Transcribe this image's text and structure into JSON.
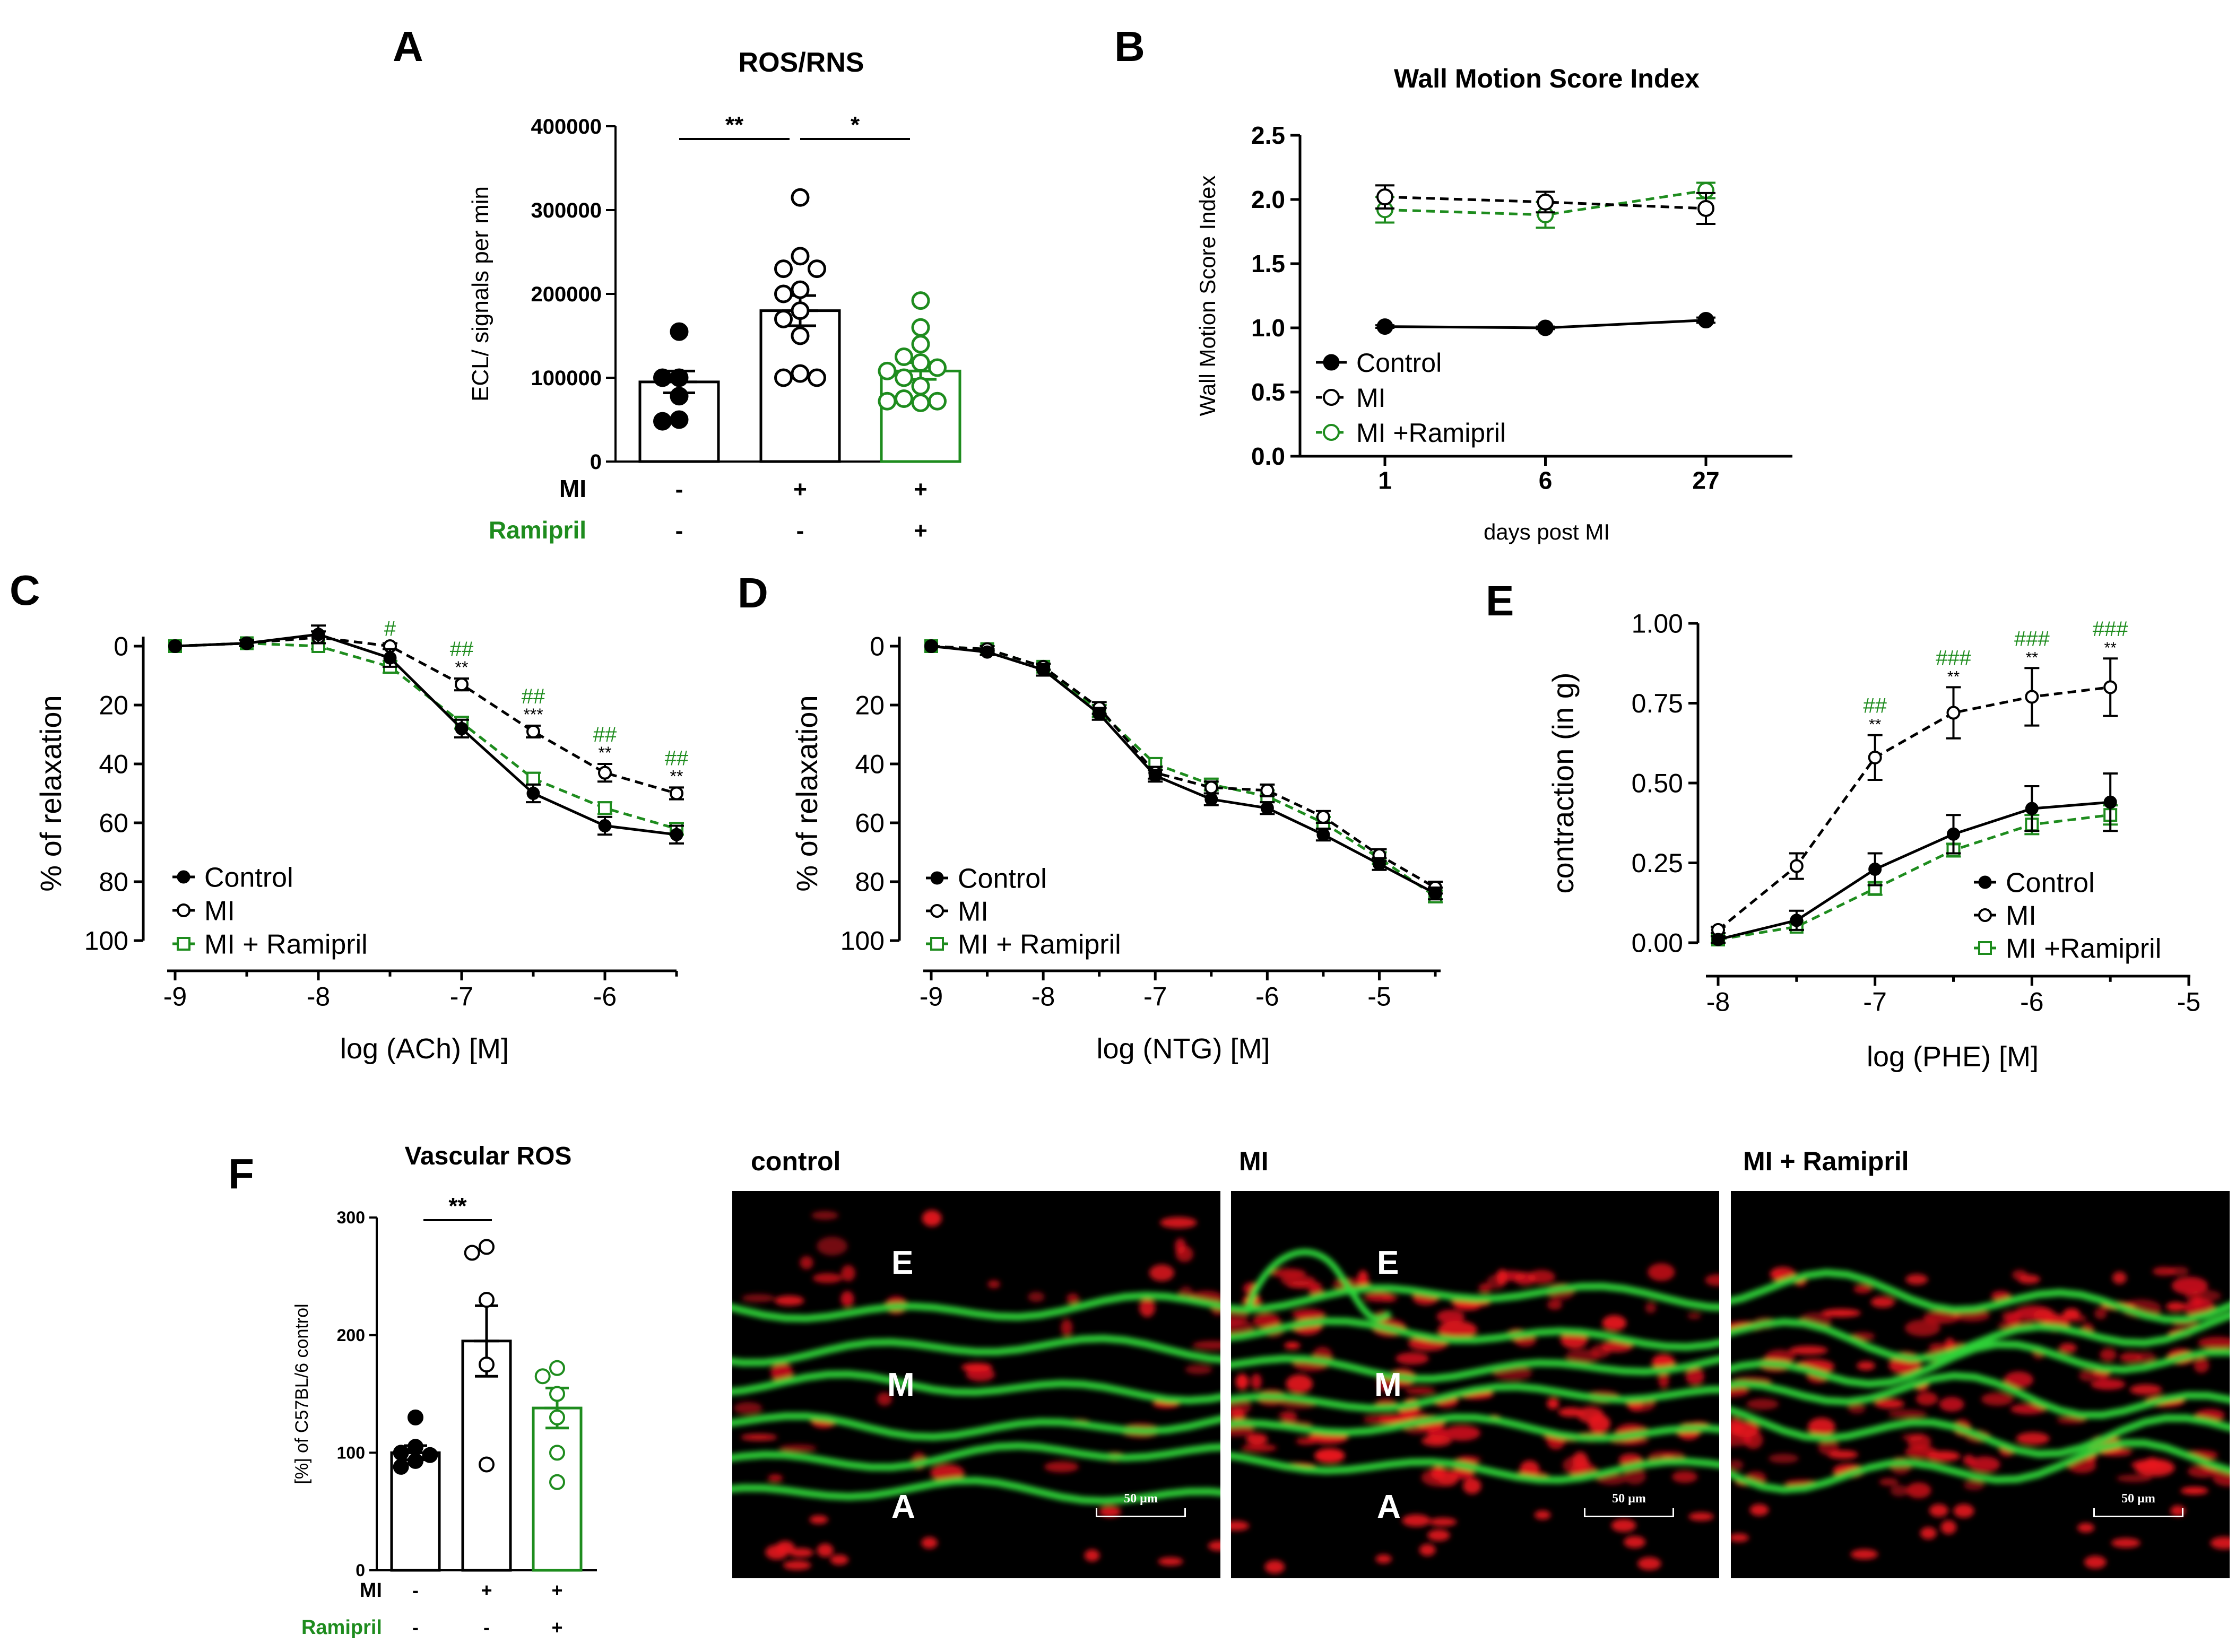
{
  "panel_letters": {
    "A": "A",
    "B": "B",
    "C": "C",
    "D": "D",
    "E": "E",
    "F": "F"
  },
  "colors": {
    "control": "#000000",
    "mi": "#000000",
    "ramipril": "#1e8c1e",
    "sig_green": "#1e8c1e"
  },
  "chart_data": [
    {
      "id": "A",
      "type": "bar",
      "title": "ROS/RNS",
      "ylabel": "ECL/ signals per min",
      "ylim": [
        0,
        400000
      ],
      "yticks": [
        "0",
        "100000",
        "200000",
        "300000",
        "400000"
      ],
      "ytick_values": [
        0,
        100000,
        200000,
        300000,
        400000
      ],
      "row_labels": {
        "mi": "MI",
        "ramipril": "Ramipril"
      },
      "groups": [
        {
          "name": "Control",
          "mean": 95000,
          "sem": 13000,
          "color": "#000000",
          "filled": true,
          "points": [
            155000,
            100000,
            100000,
            78000,
            50000,
            48000
          ],
          "mi": "-",
          "ramipril": "-"
        },
        {
          "name": "MI",
          "mean": 180000,
          "sem": 18000,
          "color": "#000000",
          "filled": false,
          "points": [
            315000,
            245000,
            230000,
            230000,
            205000,
            200000,
            180000,
            170000,
            150000,
            105000,
            100000,
            100000
          ],
          "mi": "+",
          "ramipril": "-"
        },
        {
          "name": "MI + Ramipril",
          "mean": 108000,
          "sem": 10000,
          "color": "#1e8c1e",
          "filled": false,
          "points": [
            192000,
            160000,
            140000,
            125000,
            118000,
            112000,
            108000,
            100000,
            90000,
            75000,
            72000,
            72000,
            70000
          ],
          "mi": "+",
          "ramipril": "+"
        }
      ],
      "significance": [
        {
          "from": 0,
          "to": 1,
          "label": "**"
        },
        {
          "from": 1,
          "to": 2,
          "label": "*"
        }
      ]
    },
    {
      "id": "B",
      "type": "line",
      "title": "Wall Motion Score Index",
      "xlabel": "days post MI",
      "ylabel": "Wall Motion Score Index",
      "categories": [
        "1",
        "6",
        "27"
      ],
      "ylim": [
        0,
        2.5
      ],
      "yticks": [
        "0.0",
        "0.5",
        "1.0",
        "1.5",
        "2.0",
        "2.5"
      ],
      "ytick_values": [
        0,
        0.5,
        1.0,
        1.5,
        2.0,
        2.5
      ],
      "legend": [
        "Control",
        "MI",
        "MI +Ramipril"
      ],
      "series": [
        {
          "name": "Control",
          "values": [
            1.01,
            1.0,
            1.06
          ],
          "err": [
            0.01,
            0.01,
            0.02
          ],
          "color": "#000000",
          "dashed": false,
          "marker": "filled-circle"
        },
        {
          "name": "MI",
          "values": [
            2.02,
            1.98,
            1.93
          ],
          "err": [
            0.09,
            0.08,
            0.12
          ],
          "color": "#000000",
          "dashed": true,
          "marker": "open-circle"
        },
        {
          "name": "MI +Ramipril",
          "values": [
            1.92,
            1.88,
            2.07
          ],
          "err": [
            0.1,
            0.1,
            0.06
          ],
          "color": "#1e8c1e",
          "dashed": true,
          "marker": "open-circle"
        }
      ]
    },
    {
      "id": "C",
      "type": "line",
      "xlabel": "log (ACh) [M]",
      "ylabel": "% of relaxation",
      "x": [
        -9,
        -8.5,
        -8,
        -7.5,
        -7,
        -6.5,
        -6,
        -5.5
      ],
      "xlim": [
        -9,
        -5.5
      ],
      "xticks": [
        "-9",
        "-8",
        "-7",
        "-6"
      ],
      "xtick_values": [
        -9,
        -8,
        -7,
        -6
      ],
      "ylim": [
        0,
        100
      ],
      "y_inverted": true,
      "yticks": [
        "0",
        "20",
        "40",
        "60",
        "80",
        "100"
      ],
      "ytick_values": [
        0,
        20,
        40,
        60,
        80,
        100
      ],
      "legend": [
        "Control",
        "MI",
        "MI + Ramipril"
      ],
      "series": [
        {
          "name": "Control",
          "values": [
            0,
            -1,
            -4,
            4,
            28,
            50,
            61,
            64
          ],
          "err": [
            0,
            1,
            3,
            3,
            3,
            3,
            3,
            3
          ],
          "color": "#000000",
          "dashed": false,
          "marker": "filled-circle"
        },
        {
          "name": "MI",
          "values": [
            0,
            -1,
            -3,
            0,
            13,
            29,
            43,
            50
          ],
          "err": [
            0,
            1,
            2,
            1,
            2,
            2,
            3,
            2
          ],
          "color": "#000000",
          "dashed": true,
          "marker": "open-circle"
        },
        {
          "name": "MI + Ramipril",
          "values": [
            0,
            -1,
            0,
            7,
            26,
            45,
            55,
            62
          ],
          "err": [
            0,
            1,
            1,
            2,
            2,
            2,
            2,
            2
          ],
          "color": "#1e8c1e",
          "dashed": true,
          "marker": "open-square"
        }
      ],
      "annotations": [
        {
          "x": -7.5,
          "hash": "#",
          "star": ""
        },
        {
          "x": -7,
          "hash": "##",
          "star": "**"
        },
        {
          "x": -6.5,
          "hash": "##",
          "star": "***"
        },
        {
          "x": -6,
          "hash": "##",
          "star": "**"
        },
        {
          "x": -5.5,
          "hash": "##",
          "star": "**"
        }
      ]
    },
    {
      "id": "D",
      "type": "line",
      "xlabel": "log (NTG) [M]",
      "ylabel": "% of relaxation",
      "x": [
        -9,
        -8.5,
        -8,
        -7.5,
        -7,
        -6.5,
        -6,
        -5.5,
        -5,
        -4.5
      ],
      "xlim": [
        -9,
        -4.5
      ],
      "xticks": [
        "-9",
        "-8",
        "-7",
        "-6",
        "-5"
      ],
      "xtick_values": [
        -9,
        -8,
        -7,
        -6,
        -5
      ],
      "ylim": [
        0,
        100
      ],
      "y_inverted": true,
      "yticks": [
        "0",
        "20",
        "40",
        "60",
        "80",
        "100"
      ],
      "ytick_values": [
        0,
        20,
        40,
        60,
        80,
        100
      ],
      "legend": [
        "Control",
        "MI",
        "MI + Ramipril"
      ],
      "series": [
        {
          "name": "Control",
          "values": [
            0,
            2,
            8,
            23,
            44,
            52,
            55,
            64,
            74,
            84
          ],
          "err": [
            0,
            1,
            2,
            2,
            2,
            2,
            2,
            2,
            2,
            2
          ],
          "color": "#000000",
          "dashed": false,
          "marker": "filled-circle"
        },
        {
          "name": "MI",
          "values": [
            0,
            1,
            7,
            21,
            43,
            48,
            49,
            58,
            71,
            82
          ],
          "err": [
            0,
            1,
            1,
            2,
            2,
            2,
            2,
            2,
            2,
            2
          ],
          "color": "#000000",
          "dashed": true,
          "marker": "open-circle"
        },
        {
          "name": "MI + Ramipril",
          "values": [
            0,
            1,
            7,
            22,
            40,
            47,
            51,
            60,
            72,
            85
          ],
          "err": [
            0,
            1,
            1,
            2,
            2,
            2,
            2,
            2,
            2,
            2
          ],
          "color": "#1e8c1e",
          "dashed": true,
          "marker": "open-square"
        }
      ]
    },
    {
      "id": "E",
      "type": "line",
      "xlabel": "log (PHE) [M]",
      "ylabel": "contraction (in g)",
      "x": [
        -8,
        -7.5,
        -7,
        -6.5,
        -6,
        -5.5
      ],
      "xlim": [
        -8,
        -5
      ],
      "xticks": [
        "-8",
        "-7",
        "-6",
        "-5"
      ],
      "xtick_values": [
        -8,
        -7,
        -6,
        -5
      ],
      "ylim": [
        0,
        1.0
      ],
      "yticks": [
        "0.00",
        "0.25",
        "0.50",
        "0.75",
        "1.00"
      ],
      "ytick_values": [
        0,
        0.25,
        0.5,
        0.75,
        1.0
      ],
      "legend": [
        "Control",
        "MI",
        "MI +Ramipril"
      ],
      "series": [
        {
          "name": "Control",
          "values": [
            0.01,
            0.07,
            0.23,
            0.34,
            0.42,
            0.44
          ],
          "err": [
            0.01,
            0.03,
            0.05,
            0.06,
            0.07,
            0.09
          ],
          "color": "#000000",
          "dashed": false,
          "marker": "filled-circle"
        },
        {
          "name": "MI",
          "values": [
            0.04,
            0.24,
            0.58,
            0.72,
            0.77,
            0.8
          ],
          "err": [
            0.01,
            0.04,
            0.07,
            0.08,
            0.09,
            0.09
          ],
          "color": "#000000",
          "dashed": true,
          "marker": "open-circle"
        },
        {
          "name": "MI +Ramipril",
          "values": [
            0.01,
            0.05,
            0.17,
            0.29,
            0.37,
            0.4
          ],
          "err": [
            0.01,
            0.01,
            0.02,
            0.02,
            0.03,
            0.03
          ],
          "color": "#1e8c1e",
          "dashed": true,
          "marker": "open-square"
        }
      ],
      "annotations": [
        {
          "x": -7,
          "hash": "##",
          "star": "**"
        },
        {
          "x": -6.5,
          "hash": "###",
          "star": "**"
        },
        {
          "x": -6,
          "hash": "###",
          "star": "**"
        },
        {
          "x": -5.5,
          "hash": "###",
          "star": "**"
        }
      ]
    },
    {
      "id": "F",
      "type": "bar",
      "title": "Vascular ROS",
      "ylabel": "[%] of C57BL/6 control",
      "ylim": [
        0,
        300
      ],
      "yticks": [
        "0",
        "100",
        "200",
        "300"
      ],
      "ytick_values": [
        0,
        100,
        200,
        300
      ],
      "row_labels": {
        "mi": "MI",
        "ramipril": "Ramipril"
      },
      "groups": [
        {
          "name": "Control",
          "mean": 100,
          "sem": 6,
          "color": "#000000",
          "filled": true,
          "points": [
            130,
            105,
            100,
            98,
            93,
            88
          ],
          "mi": "-",
          "ramipril": "-"
        },
        {
          "name": "MI",
          "mean": 195,
          "sem": 30,
          "color": "#000000",
          "filled": false,
          "points": [
            275,
            270,
            230,
            175,
            90
          ],
          "mi": "+",
          "ramipril": "-"
        },
        {
          "name": "MI + Ramipril",
          "mean": 138,
          "sem": 17,
          "color": "#1e8c1e",
          "filled": false,
          "points": [
            172,
            165,
            150,
            130,
            100,
            75
          ],
          "mi": "+",
          "ramipril": "+"
        }
      ],
      "significance": [
        {
          "from": 0,
          "to": 1,
          "label": "**"
        }
      ]
    }
  ],
  "micrographs": [
    {
      "title": "control",
      "labels": [
        "E",
        "M",
        "A"
      ],
      "scale": "50 µm"
    },
    {
      "title": "MI",
      "labels": [
        "E",
        "M",
        "A"
      ],
      "scale": "50 µm"
    },
    {
      "title": "MI + Ramipril",
      "labels": [],
      "scale": "50 µm"
    }
  ]
}
